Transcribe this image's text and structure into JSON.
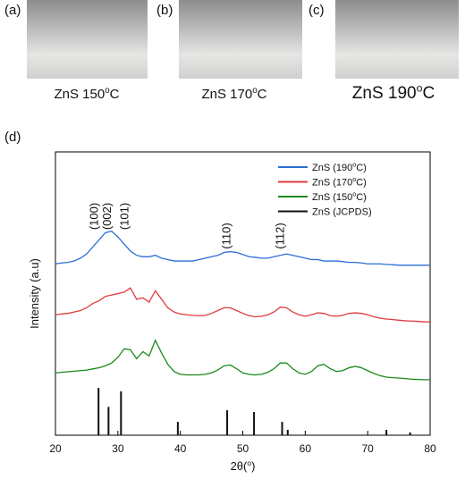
{
  "panels": [
    {
      "label": "(a)",
      "caption": {
        "text": "ZnS 150",
        "sup": "o",
        "end": "C"
      }
    },
    {
      "label": "(b)",
      "caption": {
        "text": "ZnS 170",
        "sup": "o",
        "end": "C"
      }
    },
    {
      "label": "(c)",
      "caption": {
        "text": "ZnS 190",
        "sup": "o",
        "end": "C"
      }
    }
  ],
  "chart_data": {
    "type": "line",
    "panel_label": "(d)",
    "x_label": {
      "text": "2θ(",
      "sup": "o",
      "end": ")"
    },
    "y_label": "Intensity (a.u)",
    "xlim": [
      20,
      80
    ],
    "xticks": [
      20,
      30,
      40,
      50,
      60,
      70,
      80
    ],
    "ylim": [
      0,
      100
    ],
    "legend": "top-right",
    "annotations": [
      {
        "text": "(100)",
        "x": 26.2
      },
      {
        "text": "(002)",
        "x": 28.3
      },
      {
        "text": "(101)",
        "x": 31.1
      },
      {
        "text": "(110)",
        "x": 47.4
      },
      {
        "text": "(112)",
        "x": 56
      }
    ],
    "series": [
      {
        "name": {
          "text": "ZnS (190",
          "sup": "o",
          "end": "C)"
        },
        "color": "#2a6fd6",
        "style": "line",
        "x": [
          20,
          21,
          22,
          23,
          24,
          25,
          26,
          27,
          28,
          29,
          30,
          31,
          32,
          33,
          34,
          35,
          36,
          37,
          38,
          39,
          40,
          41,
          42,
          43,
          44,
          45,
          46,
          47,
          48,
          49,
          50,
          51,
          52,
          53,
          54,
          55,
          56,
          57,
          58,
          59,
          60,
          61,
          62,
          63,
          64,
          65,
          66,
          67,
          68,
          69,
          70,
          71,
          72,
          73,
          74,
          75,
          76,
          77,
          78,
          79,
          80
        ],
        "values": [
          60.5,
          60.8,
          61,
          61.5,
          62.5,
          64,
          66.5,
          69,
          71.5,
          72,
          70,
          67.5,
          65,
          63.5,
          63,
          63,
          63.5,
          62.5,
          62,
          61.5,
          61.5,
          61.5,
          61.5,
          62,
          62.5,
          63,
          63.5,
          64.5,
          64.8,
          64.5,
          63.8,
          63,
          62.8,
          62.5,
          62.5,
          63,
          63.5,
          64,
          63.5,
          63,
          62.5,
          62,
          62,
          61.5,
          61.5,
          61.5,
          61.3,
          61,
          61,
          60.8,
          60.5,
          60.5,
          60.5,
          60.3,
          60.2,
          60,
          60,
          60,
          60,
          60,
          60
        ]
      },
      {
        "name": {
          "text": "ZnS (170",
          "sup": "o",
          "end": "C)"
        },
        "color": "#e03a3e",
        "style": "line",
        "x": [
          20,
          21,
          22,
          23,
          24,
          25,
          26,
          27,
          28,
          29,
          30,
          31,
          32,
          33,
          34,
          35,
          36,
          37,
          38,
          39,
          40,
          41,
          42,
          43,
          44,
          45,
          46,
          47,
          48,
          49,
          50,
          51,
          52,
          53,
          54,
          55,
          56,
          57,
          58,
          59,
          60,
          61,
          62,
          63,
          64,
          65,
          66,
          67,
          68,
          69,
          70,
          71,
          72,
          73,
          74,
          75,
          76,
          77,
          78,
          79,
          80
        ],
        "values": [
          42.5,
          42.8,
          43,
          43.5,
          44,
          45,
          46.5,
          47.5,
          49,
          49.5,
          50,
          50.5,
          52,
          48,
          48.5,
          47,
          51,
          48,
          45,
          43.5,
          42.8,
          42.5,
          42.3,
          42.2,
          42.3,
          43,
          44,
          45,
          45,
          44,
          43,
          42.2,
          41.8,
          42,
          42.5,
          43.5,
          45.2,
          45,
          43.5,
          42.5,
          42,
          42.5,
          43.2,
          43,
          42.2,
          42,
          42.3,
          43,
          43.2,
          43,
          42.5,
          41.8,
          41.3,
          41,
          40.8,
          40.6,
          40.4,
          40.3,
          40.2,
          40,
          40
        ]
      },
      {
        "name": {
          "text": "ZnS (150",
          "sup": "o",
          "end": "C)"
        },
        "color": "#1a8a1a",
        "style": "line",
        "x": [
          20,
          21,
          22,
          23,
          24,
          25,
          26,
          27,
          28,
          29,
          30,
          31,
          32,
          33,
          34,
          35,
          36,
          37,
          38,
          39,
          40,
          41,
          42,
          43,
          44,
          45,
          46,
          47,
          48,
          49,
          50,
          51,
          52,
          53,
          54,
          55,
          56,
          57,
          58,
          59,
          60,
          61,
          62,
          63,
          64,
          65,
          66,
          67,
          68,
          69,
          70,
          71,
          72,
          73,
          74,
          75,
          76,
          77,
          78,
          79,
          80
        ],
        "values": [
          22,
          22.2,
          22.4,
          22.6,
          22.8,
          23,
          23.4,
          23.8,
          24.5,
          25.5,
          27.5,
          30.5,
          30.2,
          27,
          29.5,
          28,
          33.5,
          29,
          25,
          22.5,
          21.5,
          21.3,
          21.3,
          21.3,
          21.5,
          22,
          23,
          24.5,
          24.8,
          23.5,
          22,
          21.5,
          21.3,
          21.5,
          22.2,
          23.5,
          25.5,
          25.5,
          23.5,
          22,
          21.5,
          22.5,
          24.5,
          25,
          23.5,
          22.5,
          22.8,
          23.8,
          24.3,
          23.8,
          22.8,
          21.8,
          21,
          20.5,
          20.3,
          20.2,
          20,
          19.8,
          19.7,
          19.6,
          19.6
        ]
      },
      {
        "name": {
          "text": "ZnS (JCPDS)"
        },
        "color": "#111111",
        "style": "stick",
        "x": [
          26.9,
          28.5,
          30.5,
          39.6,
          47.5,
          51.8,
          56.3,
          57.2,
          73,
          76.8
        ],
        "values": [
          16.7,
          10,
          15.5,
          4.7,
          8.8,
          8.2,
          4.7,
          1.9,
          1.9,
          1
        ]
      }
    ]
  }
}
